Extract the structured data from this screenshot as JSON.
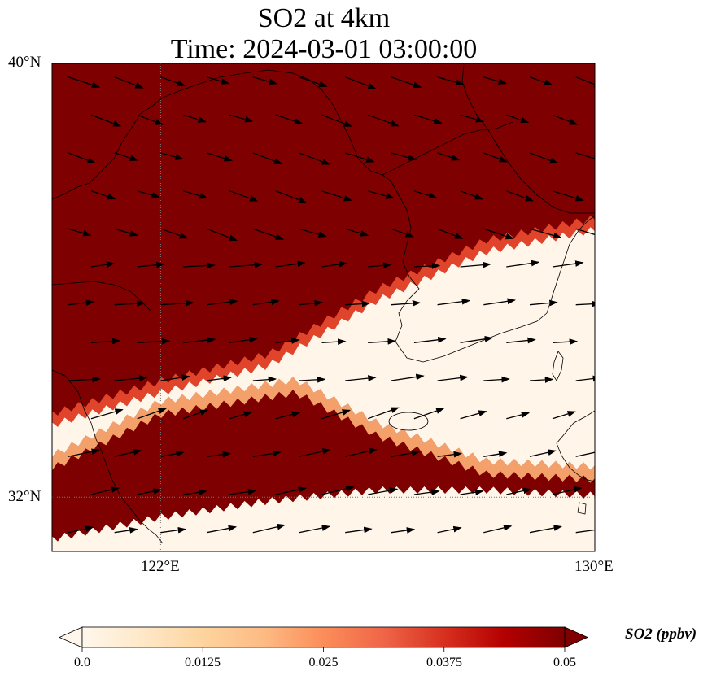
{
  "title": {
    "line1": "SO2 at 4km",
    "line2": "Time: 2024-03-01 03:00:00"
  },
  "map": {
    "extent": {
      "lon_min": 120,
      "lon_max": 130,
      "lat_min": 31,
      "lat_max": 40
    },
    "lat_ticks": [
      {
        "value": 40,
        "label": "40°N"
      },
      {
        "value": 32,
        "label": "32°N"
      }
    ],
    "lon_ticks": [
      {
        "value": 122,
        "label": "122°E"
      },
      {
        "value": 130,
        "label": "130°E"
      }
    ],
    "field": {
      "variable": "SO2",
      "units": "ppbv",
      "description": "High SO2 (>=0.05 ppbv) over north and south, clean band through the middle",
      "clean_band_north_edge": [
        [
          120,
          33.4
        ],
        [
          122,
          34.0
        ],
        [
          124,
          34.5
        ],
        [
          126,
          35.7
        ],
        [
          128,
          36.6
        ],
        [
          130,
          37.0
        ]
      ],
      "clean_band_south_edge": [
        [
          120,
          32.7
        ],
        [
          122,
          33.7
        ],
        [
          124.5,
          34.1
        ],
        [
          126,
          33.3
        ],
        [
          128,
          32.6
        ],
        [
          130,
          32.5
        ]
      ],
      "south_clean_edge": [
        [
          120,
          31.3
        ],
        [
          122,
          31.7
        ],
        [
          124,
          32.0
        ],
        [
          126,
          32.2
        ],
        [
          128,
          32.2
        ],
        [
          130,
          32.1
        ]
      ]
    },
    "colors": {
      "high": "#7f0000",
      "clean": "#fff5e8",
      "coast": "#000000",
      "arrow": "#000000"
    }
  },
  "colorbar": {
    "label": "SO2 (ppbv)",
    "min": 0.0,
    "max": 0.05,
    "ticks": [
      "0.0",
      "0.0125",
      "0.025",
      "0.0375",
      "0.05"
    ],
    "colors": [
      "#fff7ec",
      "#fee8c8",
      "#fdd49e",
      "#fdbb84",
      "#fc8d59",
      "#ef6548",
      "#d7301f",
      "#b30000",
      "#7f0000"
    ]
  }
}
